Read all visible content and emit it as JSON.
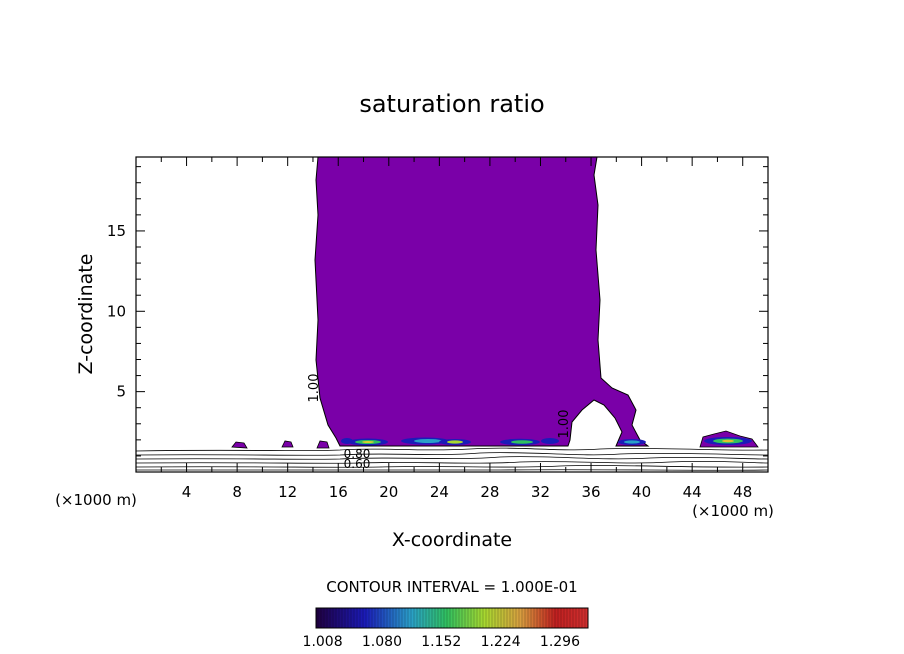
{
  "chart_data": {
    "type": "contour",
    "title": "saturation ratio",
    "xlabel": "X-coordinate",
    "ylabel": "Z-coordinate",
    "x_unit_left": "(×1000 m)",
    "x_unit_right": "(×1000 m)",
    "xlim": [
      0,
      50
    ],
    "ylim": [
      0,
      19.6
    ],
    "x_ticks": [
      4,
      8,
      12,
      16,
      20,
      24,
      28,
      32,
      36,
      40,
      44,
      48
    ],
    "y_ticks": [
      5,
      10,
      15
    ],
    "contour_labels": [
      "1.00",
      "1.00",
      "0.80",
      "0.60"
    ],
    "contour_interval_text": "CONTOUR INTERVAL = 1.000E-01",
    "colorbar_ticks": [
      "1.008",
      "1.080",
      "1.152",
      "1.224",
      "1.296"
    ],
    "colorbar_range": [
      1.0,
      1.33
    ],
    "colors": {
      "fill_main": "#7a00a8",
      "colorbar_stops": [
        "#200040",
        "#1b1bb8",
        "#2aa0c8",
        "#30c060",
        "#a8d830",
        "#d8a040",
        "#c02020",
        "#d03030"
      ]
    }
  }
}
